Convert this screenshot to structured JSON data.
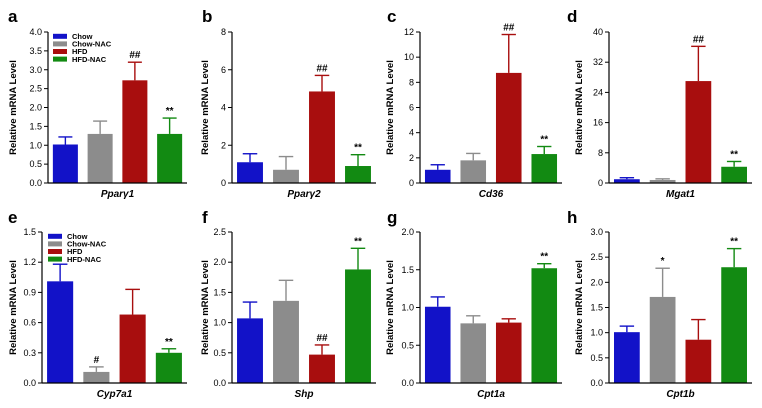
{
  "colors": {
    "Chow": "#1212c8",
    "Chow-NAC": "#8c8c8c",
    "HFD": "#a80e0e",
    "HFD-NAC": "#128a12"
  },
  "legend_entries": [
    "Chow",
    "Chow-NAC",
    "HFD",
    "HFD-NAC"
  ],
  "chart_data": [
    {
      "type": "bar",
      "panel": "a",
      "xlabel": "Pparγ1",
      "ylabel": "Relative mRNA Level",
      "ylim": [
        0,
        4.0
      ],
      "yticks": [
        "0.0",
        "0.5",
        "1.0",
        "1.5",
        "2.0",
        "2.5",
        "3.0",
        "3.5",
        "4.0"
      ],
      "categories": [
        "Chow",
        "Chow-NAC",
        "HFD",
        "HFD-NAC"
      ],
      "values": [
        1.02,
        1.3,
        2.72,
        1.3
      ],
      "errors": [
        0.2,
        0.34,
        0.48,
        0.42
      ],
      "annotations": [
        "",
        "",
        "##",
        "**"
      ]
    },
    {
      "type": "bar",
      "panel": "b",
      "xlabel": "Pparγ2",
      "ylabel": "Relative mRNA Level",
      "ylim": [
        0,
        8
      ],
      "yticks": [
        "0",
        "2",
        "4",
        "6",
        "8"
      ],
      "categories": [
        "Chow",
        "Chow-NAC",
        "HFD",
        "HFD-NAC"
      ],
      "values": [
        1.1,
        0.7,
        4.85,
        0.9
      ],
      "errors": [
        0.45,
        0.7,
        0.85,
        0.6
      ],
      "annotations": [
        "",
        "",
        "##",
        "**"
      ]
    },
    {
      "type": "bar",
      "panel": "c",
      "xlabel": "Cd36",
      "ylabel": "Relative mRNA Level",
      "ylim": [
        0,
        12
      ],
      "yticks": [
        "0",
        "2",
        "4",
        "6",
        "8",
        "10",
        "12"
      ],
      "categories": [
        "Chow",
        "Chow-NAC",
        "HFD",
        "HFD-NAC"
      ],
      "values": [
        1.05,
        1.8,
        8.75,
        2.3
      ],
      "errors": [
        0.4,
        0.55,
        3.05,
        0.6
      ],
      "annotations": [
        "",
        "",
        "##",
        "**"
      ]
    },
    {
      "type": "bar",
      "panel": "d",
      "xlabel": "Mgat1",
      "ylabel": "Relative mRNA Level",
      "ylim": [
        0,
        40
      ],
      "yticks": [
        "0",
        "8",
        "16",
        "24",
        "32",
        "40"
      ],
      "categories": [
        "Chow",
        "Chow-NAC",
        "HFD",
        "HFD-NAC"
      ],
      "values": [
        1.0,
        0.8,
        27.0,
        4.3
      ],
      "errors": [
        0.4,
        0.3,
        9.2,
        1.4
      ],
      "annotations": [
        "",
        "",
        "##",
        "**"
      ]
    },
    {
      "type": "bar",
      "panel": "e",
      "xlabel": "Cyp7a1",
      "ylabel": "Relative mRNA Level",
      "ylim": [
        0,
        1.5
      ],
      "yticks": [
        "0.0",
        "0.3",
        "0.6",
        "0.9",
        "1.2",
        "1.5"
      ],
      "categories": [
        "Chow",
        "Chow-NAC",
        "HFD",
        "HFD-NAC"
      ],
      "values": [
        1.01,
        0.11,
        0.68,
        0.3
      ],
      "errors": [
        0.17,
        0.05,
        0.25,
        0.04
      ],
      "annotations": [
        "",
        "#",
        "",
        "**"
      ]
    },
    {
      "type": "bar",
      "panel": "f",
      "xlabel": "Shp",
      "ylabel": "Relative mRNA Level",
      "ylim": [
        0,
        2.5
      ],
      "yticks": [
        "0.0",
        "0.5",
        "1.0",
        "1.5",
        "2.0",
        "2.5"
      ],
      "categories": [
        "Chow",
        "Chow-NAC",
        "HFD",
        "HFD-NAC"
      ],
      "values": [
        1.07,
        1.36,
        0.47,
        1.88
      ],
      "errors": [
        0.27,
        0.34,
        0.16,
        0.35
      ],
      "annotations": [
        "",
        "",
        "##",
        "**"
      ]
    },
    {
      "type": "bar",
      "panel": "g",
      "xlabel": "Cpt1a",
      "ylabel": "Relative mRNA Level",
      "ylim": [
        0,
        2.0
      ],
      "yticks": [
        "0.0",
        "0.5",
        "1.0",
        "1.5",
        "2.0"
      ],
      "categories": [
        "Chow",
        "Chow-NAC",
        "HFD",
        "HFD-NAC"
      ],
      "values": [
        1.01,
        0.79,
        0.8,
        1.52
      ],
      "errors": [
        0.13,
        0.1,
        0.05,
        0.06
      ],
      "annotations": [
        "",
        "",
        "",
        "**"
      ]
    },
    {
      "type": "bar",
      "panel": "h",
      "xlabel": "Cpt1b",
      "ylabel": "Relative mRNA Level",
      "ylim": [
        0,
        3.0
      ],
      "yticks": [
        "0.0",
        "0.5",
        "1.0",
        "1.5",
        "2.0",
        "2.5",
        "3.0"
      ],
      "categories": [
        "Chow",
        "Chow-NAC",
        "HFD",
        "HFD-NAC"
      ],
      "values": [
        1.01,
        1.71,
        0.86,
        2.3
      ],
      "errors": [
        0.12,
        0.57,
        0.4,
        0.37
      ],
      "annotations": [
        "",
        "*",
        "",
        "**"
      ]
    }
  ]
}
